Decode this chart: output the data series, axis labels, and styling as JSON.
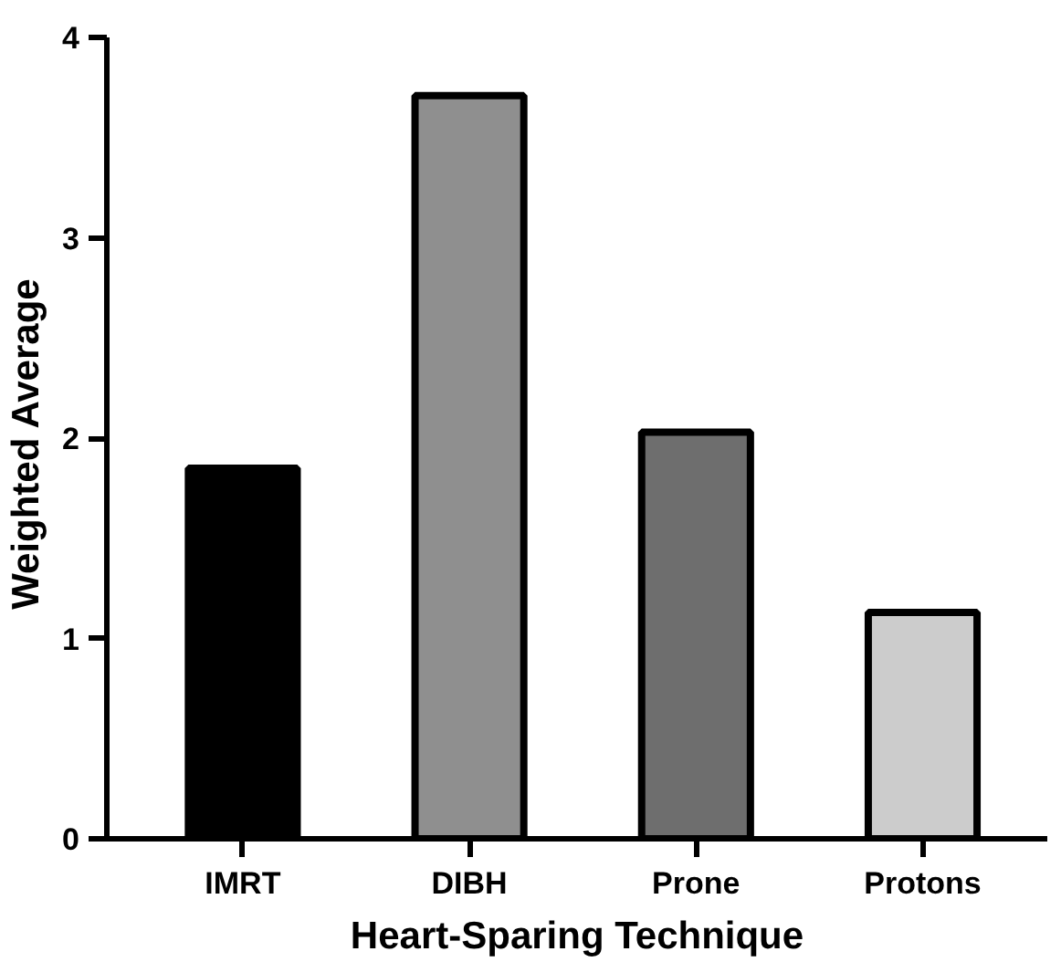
{
  "chart_data": {
    "type": "bar",
    "xlabel": "Heart-Sparing Technique",
    "ylabel": "Weighted  Average",
    "categories": [
      "IMRT",
      "DIBH",
      "Prone",
      "Protons"
    ],
    "values": [
      1.85,
      3.71,
      2.03,
      1.13
    ],
    "colors": [
      "#000000",
      "#8f8f8f",
      "#6e6e6e",
      "#cccccc"
    ],
    "ylim": [
      0,
      4
    ],
    "yticks": [
      0,
      1,
      2,
      3,
      4
    ],
    "grid": false
  }
}
